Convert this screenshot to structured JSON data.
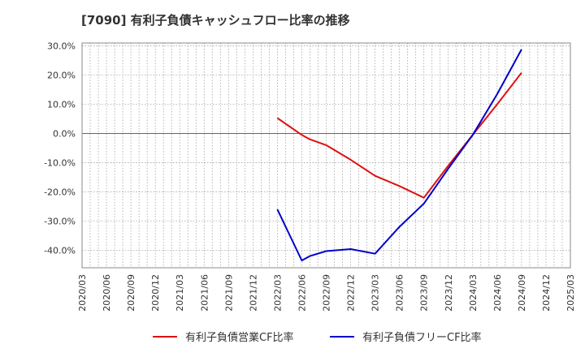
{
  "chart_data": {
    "type": "line",
    "title": "[7090]  有利子負債キャッシュフロー比率の推移",
    "xlabel": "",
    "ylabel": "",
    "ylim": [
      -46,
      31
    ],
    "y_ticks": [
      30,
      20,
      10,
      0,
      -10,
      -20,
      -30,
      -40
    ],
    "y_tick_labels": [
      "30.0%",
      "20.0%",
      "10.0%",
      "0.0%",
      "-10.0%",
      "-20.0%",
      "-30.0%",
      "-40.0%"
    ],
    "categories": [
      "2020/03",
      "2020/06",
      "2020/09",
      "2020/12",
      "2021/03",
      "2021/06",
      "2021/09",
      "2021/12",
      "2022/03",
      "2022/06",
      "2022/09",
      "2022/12",
      "2023/03",
      "2023/06",
      "2023/09",
      "2023/12",
      "2024/03",
      "2024/06",
      "2024/09",
      "2024/12",
      "2025/03"
    ],
    "grid": true,
    "legend_position": "bottom",
    "series": [
      {
        "name": "有利子負債営業CF比率",
        "color": "#dd1111",
        "points": [
          {
            "i": 8,
            "y": 5.3
          },
          {
            "i": 9,
            "y": -0.5
          },
          {
            "i": 9.33,
            "y": -2.0
          },
          {
            "i": 10,
            "y": -4.0
          },
          {
            "i": 11,
            "y": -9.0
          },
          {
            "i": 12,
            "y": -14.5
          },
          {
            "i": 13,
            "y": -18.0
          },
          {
            "i": 14,
            "y": -22.0
          },
          {
            "i": 15,
            "y": -11.0
          },
          {
            "i": 16,
            "y": -0.5
          },
          {
            "i": 17,
            "y": 10.0
          },
          {
            "i": 18,
            "y": 20.8
          }
        ]
      },
      {
        "name": "有利子負債フリーCF比率",
        "color": "#0000cc",
        "points": [
          {
            "i": 8,
            "y": -26.0
          },
          {
            "i": 9,
            "y": -43.5
          },
          {
            "i": 9.33,
            "y": -42.0
          },
          {
            "i": 10,
            "y": -40.3
          },
          {
            "i": 11,
            "y": -39.6
          },
          {
            "i": 12,
            "y": -41.2
          },
          {
            "i": 13,
            "y": -32.0
          },
          {
            "i": 14,
            "y": -24.0
          },
          {
            "i": 15,
            "y": -12.0
          },
          {
            "i": 16,
            "y": -0.5
          },
          {
            "i": 17,
            "y": 13.5
          },
          {
            "i": 18,
            "y": 28.8
          }
        ]
      }
    ]
  }
}
